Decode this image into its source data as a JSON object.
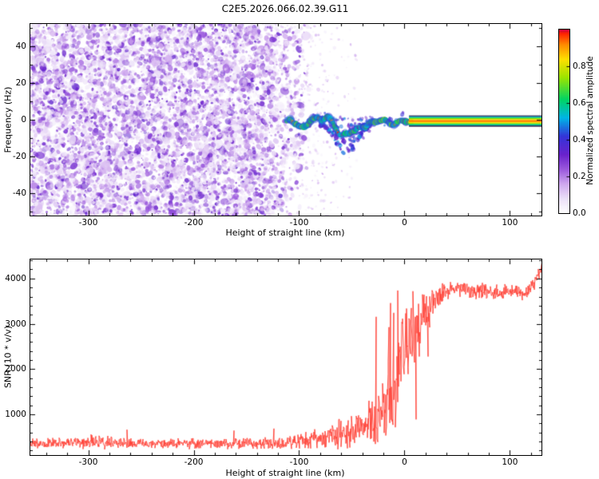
{
  "title": "C2E5.2026.066.02.39.G11",
  "chart_data": [
    {
      "type": "heatmap",
      "title": "C2E5.2026.066.02.39.G11",
      "xlabel": "Height of straight line (km)",
      "ylabel": "Frequency (Hz)",
      "xlim": [
        -355,
        130
      ],
      "ylim": [
        -52,
        52
      ],
      "xticks": [
        -300,
        -200,
        -100,
        0,
        100
      ],
      "yticks": [
        -40,
        -20,
        0,
        20,
        40
      ],
      "x_minor_step": 20,
      "y_minor_step": 10,
      "colorbar": {
        "label": "Normalized spectral amplitude",
        "ticks": [
          0,
          0.2,
          0.4,
          0.6,
          0.8
        ],
        "range": [
          0,
          1
        ],
        "stops": [
          [
            0.0,
            "#ffffff"
          ],
          [
            0.08,
            "#ece0f8"
          ],
          [
            0.16,
            "#cfa8ee"
          ],
          [
            0.24,
            "#9b59dd"
          ],
          [
            0.32,
            "#6a22cc"
          ],
          [
            0.42,
            "#3434d8"
          ],
          [
            0.52,
            "#00b4e6"
          ],
          [
            0.62,
            "#00d464"
          ],
          [
            0.74,
            "#9be400"
          ],
          [
            0.84,
            "#ffdf00"
          ],
          [
            0.92,
            "#ff8a00"
          ],
          [
            0.98,
            "#ff2200"
          ],
          [
            1.0,
            "#cc0040"
          ]
        ]
      },
      "regions": {
        "noise_speckle_x": [
          -355,
          -88
        ],
        "signal_track_x": [
          -112,
          6
        ],
        "signal_center_hz": -1.5,
        "tail_x": [
          -80,
          -32
        ],
        "tail_max_depth_hz": 18,
        "locked_band_x": [
          4,
          130
        ],
        "band_center_hz": -0.6,
        "band_halfwidth_hz": 2.45,
        "band_edge_color": "#26264d"
      }
    },
    {
      "type": "line",
      "xlabel": "Height of straight line (km)",
      "ylabel": "SNR (10 * v/v)",
      "xlim": [
        -355,
        130
      ],
      "ylim": [
        100,
        4420
      ],
      "xticks": [
        -300,
        -200,
        -100,
        0,
        100
      ],
      "yticks": [
        1000,
        2000,
        3000,
        4000
      ],
      "x_minor_step": 20,
      "y_minor_step": 200,
      "series": [
        {
          "name": "SNR",
          "color": "#ff3b30",
          "envelope_x": [
            -355,
            -330,
            -300,
            -270,
            -240,
            -210,
            -180,
            -150,
            -130,
            -110,
            -100,
            -90,
            -80,
            -70,
            -60,
            -50,
            -40,
            -32,
            -26,
            -20,
            -15,
            -10,
            -5,
            0,
            4,
            8,
            12,
            16,
            20,
            25,
            30,
            36,
            45,
            55,
            65,
            75,
            85,
            95,
            105,
            115,
            122,
            127,
            130
          ],
          "envelope_mean": [
            340,
            360,
            390,
            360,
            350,
            355,
            345,
            350,
            355,
            380,
            400,
            430,
            470,
            520,
            580,
            640,
            720,
            820,
            950,
            1100,
            1350,
            1700,
            2100,
            2500,
            2750,
            2850,
            2700,
            2900,
            3200,
            3450,
            3600,
            3700,
            3760,
            3780,
            3700,
            3740,
            3660,
            3700,
            3740,
            3680,
            3850,
            4100,
            4250
          ],
          "envelope_amp": [
            130,
            150,
            180,
            140,
            130,
            140,
            130,
            135,
            140,
            160,
            190,
            230,
            280,
            330,
            380,
            430,
            500,
            620,
            800,
            1000,
            1200,
            1300,
            1300,
            1250,
            1150,
            1050,
            1100,
            900,
            700,
            520,
            380,
            280,
            220,
            200,
            210,
            200,
            210,
            200,
            205,
            210,
            220,
            200,
            150
          ]
        }
      ]
    }
  ]
}
